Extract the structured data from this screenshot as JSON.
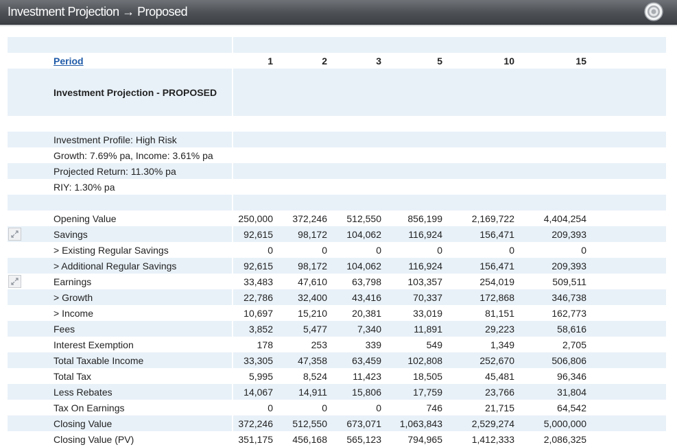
{
  "window": {
    "title": "Investment Projection → Proposed"
  },
  "icons": {
    "settings": "settings-icon",
    "expand": "expand-icon"
  },
  "header": {
    "period_label": "Period",
    "periods": [
      "1",
      "2",
      "3",
      "5",
      "10",
      "15"
    ]
  },
  "section_title": "Investment Projection - PROPOSED",
  "profile": [
    "Investment Profile: High Risk",
    "Growth: 7.69% pa, Income: 3.61% pa",
    "Projected Return: 11.30% pa",
    "RIY: 1.30% pa"
  ],
  "rows": [
    {
      "label": "Opening Value",
      "values": [
        "250,000",
        "372,246",
        "512,550",
        "856,199",
        "2,169,722",
        "4,404,254"
      ]
    },
    {
      "label": "Savings",
      "values": [
        "92,615",
        "98,172",
        "104,062",
        "116,924",
        "156,471",
        "209,393"
      ]
    },
    {
      "label": "> Existing Regular Savings",
      "values": [
        "0",
        "0",
        "0",
        "0",
        "0",
        "0"
      ]
    },
    {
      "label": "> Additional Regular Savings",
      "values": [
        "92,615",
        "98,172",
        "104,062",
        "116,924",
        "156,471",
        "209,393"
      ]
    },
    {
      "label": "Earnings",
      "values": [
        "33,483",
        "47,610",
        "63,798",
        "103,357",
        "254,019",
        "509,511"
      ]
    },
    {
      "label": "> Growth",
      "values": [
        "22,786",
        "32,400",
        "43,416",
        "70,337",
        "172,868",
        "346,738"
      ]
    },
    {
      "label": "> Income",
      "values": [
        "10,697",
        "15,210",
        "20,381",
        "33,019",
        "81,151",
        "162,773"
      ]
    },
    {
      "label": "Fees",
      "values": [
        "3,852",
        "5,477",
        "7,340",
        "11,891",
        "29,223",
        "58,616"
      ]
    },
    {
      "label": "Interest Exemption",
      "values": [
        "178",
        "253",
        "339",
        "549",
        "1,349",
        "2,705"
      ]
    },
    {
      "label": "Total Taxable Income",
      "values": [
        "33,305",
        "47,358",
        "63,459",
        "102,808",
        "252,670",
        "506,806"
      ]
    },
    {
      "label": "Total Tax",
      "values": [
        "5,995",
        "8,524",
        "11,423",
        "18,505",
        "45,481",
        "96,346"
      ]
    },
    {
      "label": "Less Rebates",
      "values": [
        "14,067",
        "14,911",
        "15,806",
        "17,759",
        "23,766",
        "31,804"
      ]
    },
    {
      "label": "Tax On Earnings",
      "values": [
        "0",
        "0",
        "0",
        "746",
        "21,715",
        "64,542"
      ]
    },
    {
      "label": "Closing Value",
      "values": [
        "372,246",
        "512,550",
        "673,071",
        "1,063,843",
        "2,529,274",
        "5,000,000"
      ]
    },
    {
      "label": "Closing Value (PV)",
      "values": [
        "351,175",
        "456,168",
        "565,123",
        "794,965",
        "1,412,333",
        "2,086,325"
      ]
    }
  ]
}
